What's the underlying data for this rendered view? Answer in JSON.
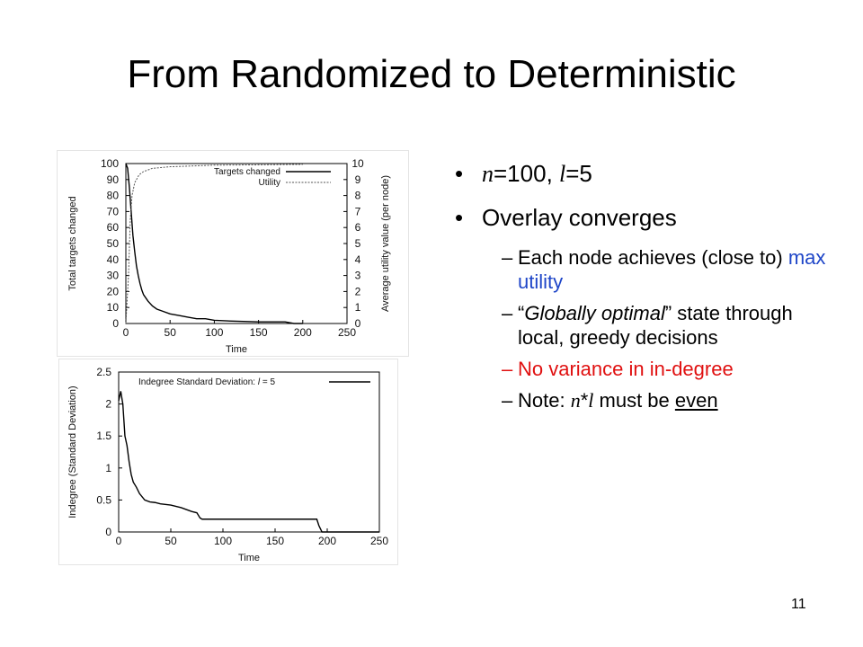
{
  "slide": {
    "title": "From Randomized to Deterministic",
    "page_number": "11"
  },
  "bullets": {
    "b1": {
      "var_n": "n",
      "t1": "=100, ",
      "var_l": "l",
      "t2": "=5"
    },
    "b2": "Overlay converges",
    "sub1": {
      "t1": "Each node achieves (close to) ",
      "t2": "max utility"
    },
    "sub2": {
      "q1": "“",
      "t1": "Globally optimal",
      "q2": "”",
      "t2": " state through local, greedy decisions"
    },
    "sub3": "No variance in in-degree",
    "sub4": {
      "t1": "Note: ",
      "var_n": "n",
      "star": "*",
      "var_l": "l",
      "t2": " must be ",
      "t3": "even"
    }
  },
  "colors": {
    "blue": "#1f46c8",
    "red": "#e01010"
  },
  "chart_data": [
    {
      "type": "line",
      "xlabel": "Time",
      "ylabel": "Total targets changed",
      "y2label": "Average utility value (per node)",
      "xlim": [
        0,
        250
      ],
      "ylim": [
        0,
        100
      ],
      "y2lim": [
        0,
        10
      ],
      "xticks": [
        0,
        50,
        100,
        150,
        200,
        250
      ],
      "yticks": [
        0,
        10,
        20,
        30,
        40,
        50,
        60,
        70,
        80,
        90,
        100
      ],
      "y2ticks": [
        0,
        1,
        2,
        3,
        4,
        5,
        6,
        7,
        8,
        9,
        10
      ],
      "legend_position": "top-right",
      "series": [
        {
          "name": "Targets changed",
          "axis": "left",
          "x": [
            0,
            2,
            4,
            6,
            8,
            10,
            12,
            14,
            16,
            18,
            20,
            25,
            30,
            35,
            40,
            50,
            60,
            70,
            80,
            90,
            100,
            120,
            150,
            180,
            190,
            200
          ],
          "values": [
            100,
            97,
            85,
            70,
            55,
            45,
            36,
            30,
            25,
            21,
            18,
            14,
            11,
            9,
            8,
            6,
            5,
            4,
            3,
            3,
            2,
            1.5,
            1,
            1,
            0,
            0
          ]
        },
        {
          "name": "Utility",
          "axis": "right",
          "x": [
            0,
            3,
            5,
            7,
            10,
            15,
            20,
            25,
            30,
            40,
            50,
            75,
            100,
            150,
            200
          ],
          "values": [
            0,
            3,
            6.5,
            8,
            8.8,
            9.3,
            9.5,
            9.6,
            9.7,
            9.75,
            9.8,
            9.85,
            9.9,
            9.92,
            9.95
          ]
        }
      ]
    },
    {
      "type": "line",
      "xlabel": "Time",
      "ylabel": "Indegree (Standard Deviation)",
      "xlim": [
        0,
        250
      ],
      "ylim": [
        0,
        2.5
      ],
      "xticks": [
        0,
        50,
        100,
        150,
        200,
        250
      ],
      "yticks": [
        0,
        0.5,
        1,
        1.5,
        2,
        2.5
      ],
      "ytick_labels": [
        "0",
        "0.5",
        "1",
        "1.5",
        "2",
        "2.5"
      ],
      "legend_position": "top-right",
      "series": [
        {
          "name_prefix": "Indegree Standard Deviation: ",
          "name_var": "l",
          "name_suffix": " = 5",
          "x": [
            0,
            2,
            4,
            6,
            8,
            10,
            12,
            14,
            17,
            20,
            25,
            30,
            35,
            40,
            50,
            60,
            65,
            70,
            75,
            78,
            80,
            100,
            150,
            190,
            192,
            195,
            200,
            250
          ],
          "values": [
            2.05,
            2.2,
            2.0,
            1.5,
            1.35,
            1.1,
            0.9,
            0.78,
            0.7,
            0.6,
            0.5,
            0.47,
            0.46,
            0.44,
            0.42,
            0.38,
            0.35,
            0.32,
            0.3,
            0.22,
            0.2,
            0.2,
            0.2,
            0.2,
            0.1,
            0,
            0,
            0
          ]
        }
      ]
    }
  ]
}
